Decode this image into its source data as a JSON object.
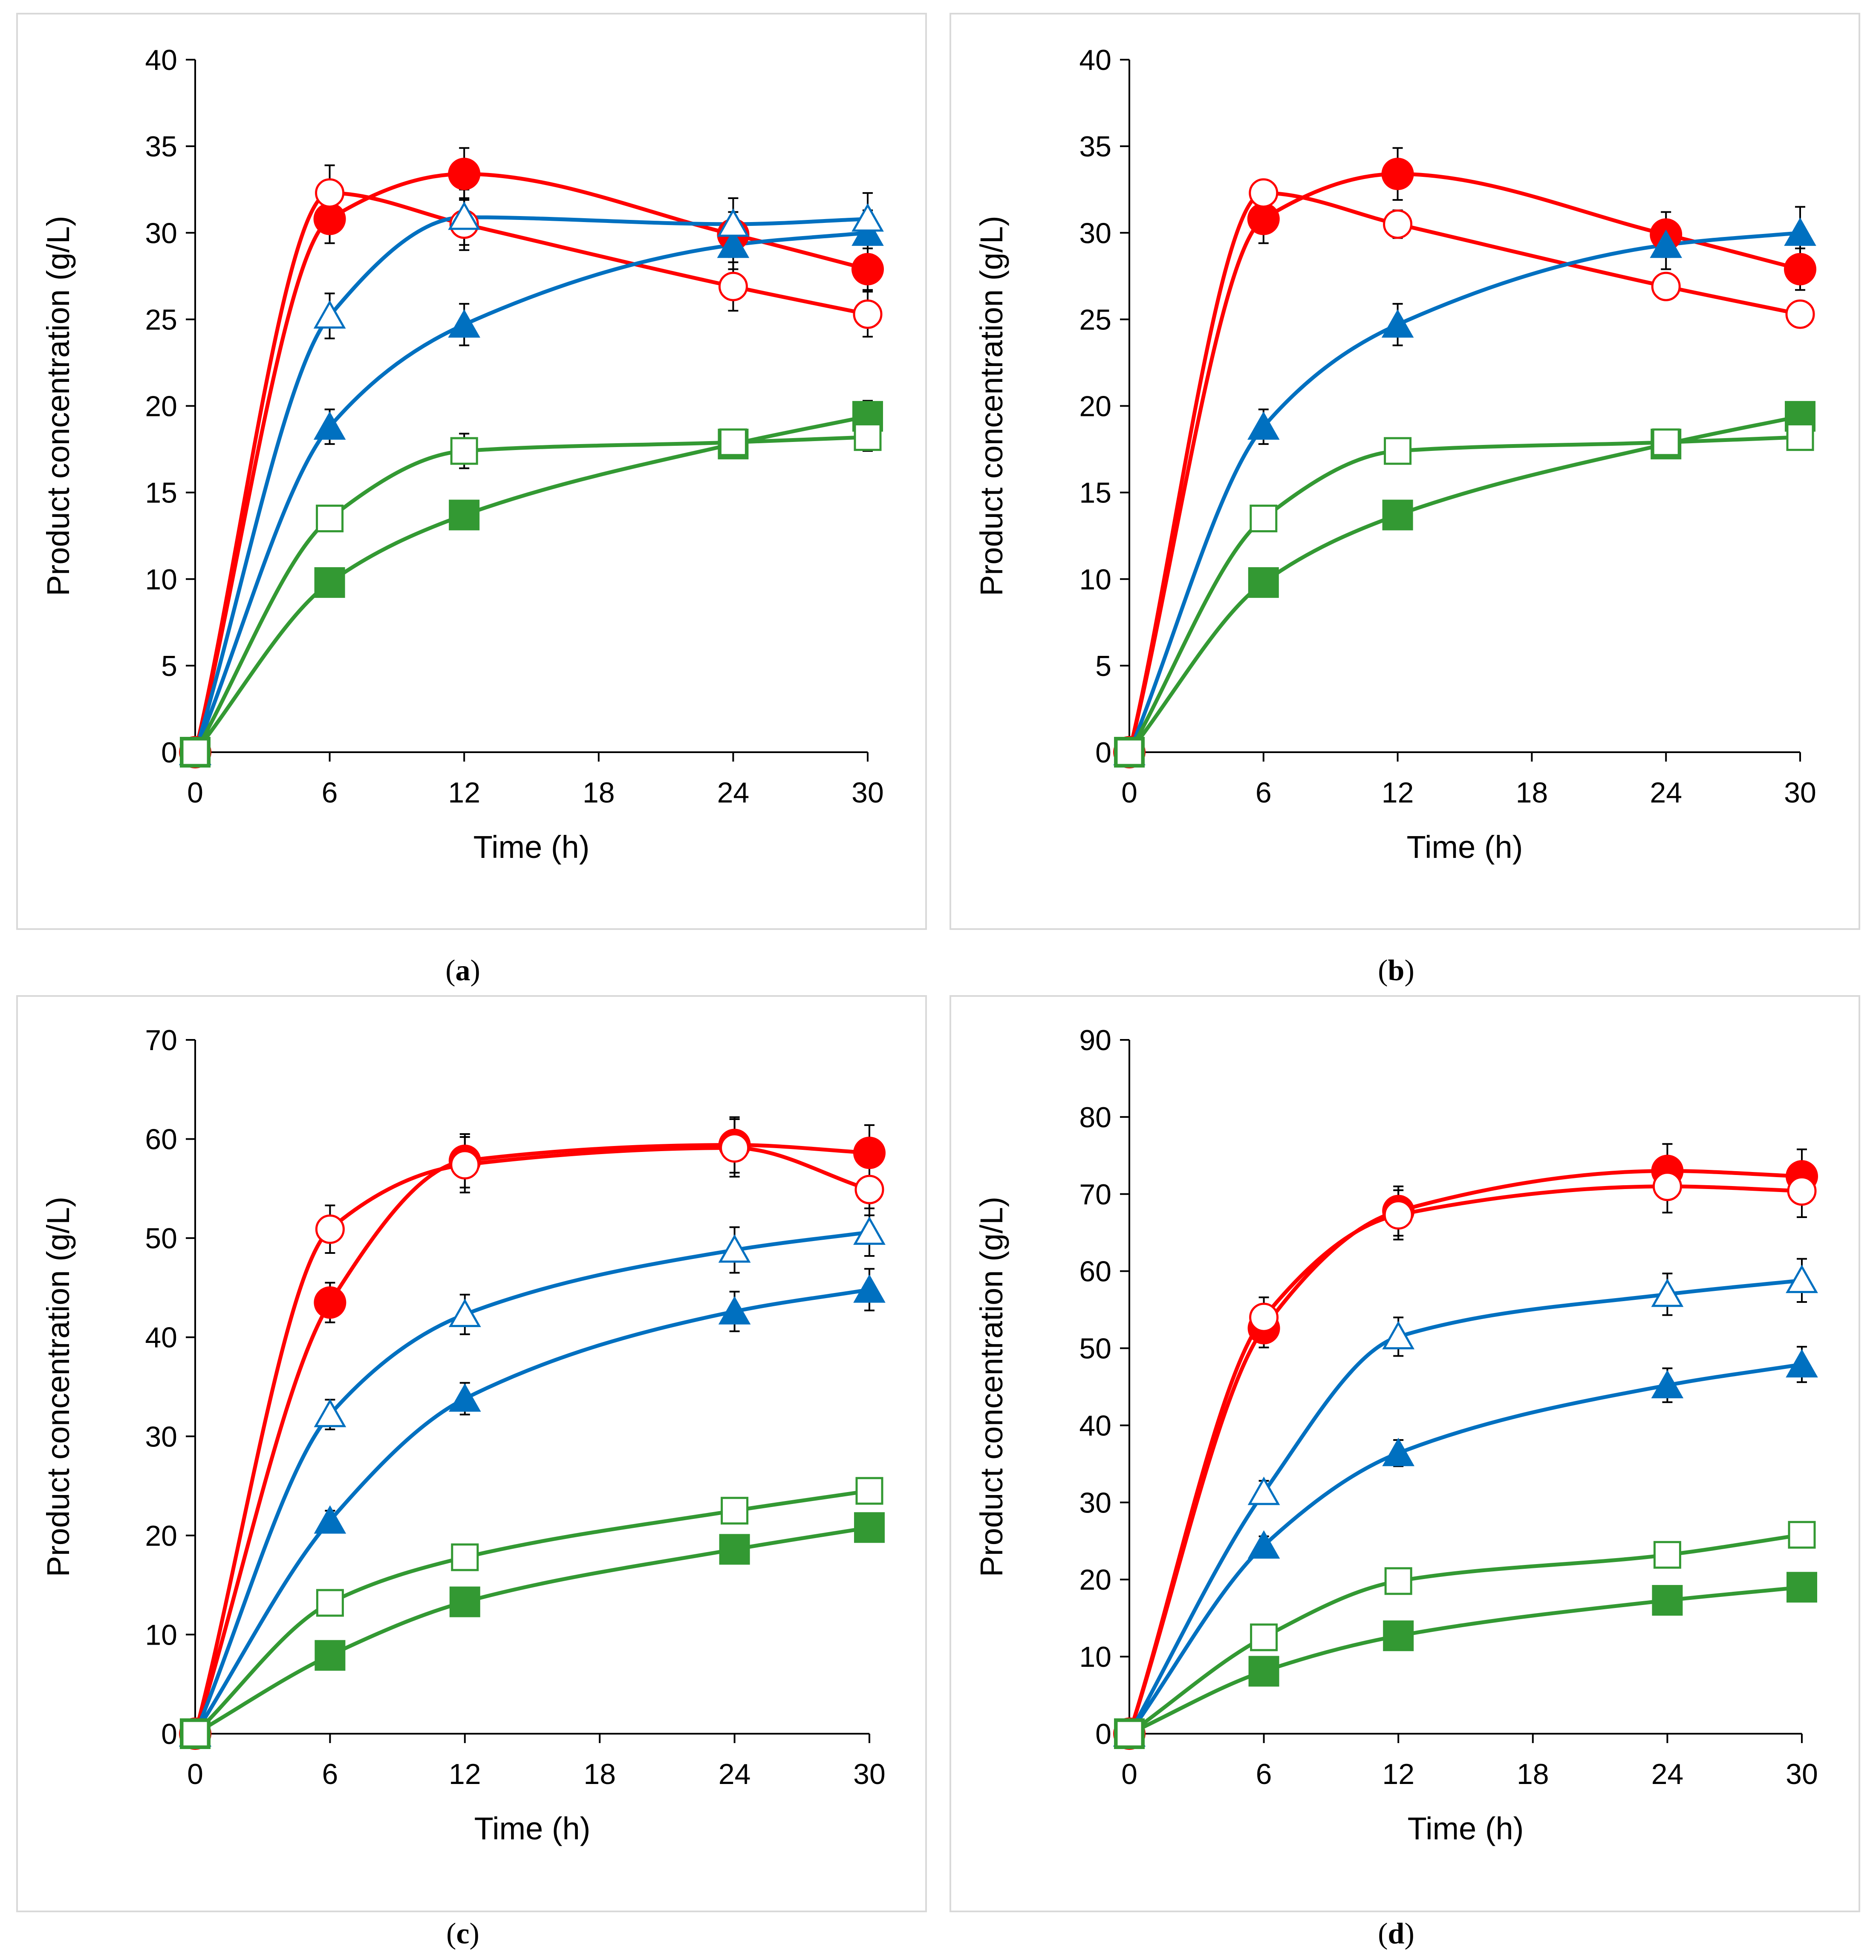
{
  "figure": {
    "colors": {
      "red": "#ff0000",
      "blue": "#0070c0",
      "green": "#339933",
      "frame": "#d9d9d9"
    },
    "marker_legend": {
      "filled-circle": "red filled circles",
      "open-circle": "red open circles",
      "filled-triangle": "blue filled triangles",
      "open-triangle": "blue open triangles",
      "filled-square": "green filled squares",
      "open-square": "green open squares"
    }
  },
  "chart_data": [
    {
      "type": "line",
      "panel_label": "a",
      "caption_open": "(",
      "caption_close": ")",
      "xlabel": "Time (h)",
      "ylabel": "Product concentration (g/L)",
      "x_ticks": [
        0,
        6,
        12,
        18,
        24,
        30
      ],
      "y_ticks": [
        0,
        5,
        10,
        15,
        20,
        25,
        30,
        35,
        40
      ],
      "ylim": [
        0,
        40
      ],
      "x": [
        0,
        6,
        12,
        24,
        30
      ],
      "series": [
        {
          "name": "red-filled",
          "color": "#ff0000",
          "marker": "circle",
          "filled": true,
          "values": [
            0,
            30.8,
            33.4,
            29.9,
            27.9
          ],
          "errors": [
            0,
            1.4,
            1.5,
            1.3,
            1.2
          ]
        },
        {
          "name": "red-open",
          "color": "#ff0000",
          "marker": "circle",
          "filled": false,
          "values": [
            0,
            32.3,
            30.5,
            26.9,
            25.3
          ],
          "errors": [
            0,
            1.6,
            1.5,
            1.4,
            1.3
          ]
        },
        {
          "name": "blue-filled",
          "color": "#0070c0",
          "marker": "triangle",
          "filled": true,
          "values": [
            0,
            18.8,
            24.7,
            29.3,
            30.0
          ],
          "errors": [
            0,
            1.0,
            1.2,
            1.4,
            1.3
          ]
        },
        {
          "name": "blue-open",
          "color": "#0070c0",
          "marker": "triangle",
          "filled": false,
          "values": [
            0,
            25.2,
            30.9,
            30.5,
            30.8
          ],
          "errors": [
            0,
            1.3,
            1.6,
            1.5,
            1.5
          ]
        },
        {
          "name": "green-filled",
          "color": "#339933",
          "marker": "square",
          "filled": true,
          "values": [
            0,
            9.8,
            13.7,
            17.8,
            19.4
          ],
          "errors": [
            0,
            0.5,
            0.6,
            0.8,
            0.9
          ]
        },
        {
          "name": "green-open",
          "color": "#339933",
          "marker": "square",
          "filled": false,
          "values": [
            0,
            13.5,
            17.4,
            17.9,
            18.2
          ],
          "errors": [
            0,
            0.7,
            1.0,
            0.7,
            0.8
          ]
        }
      ]
    },
    {
      "type": "line",
      "panel_label": "b",
      "caption_open": "(",
      "caption_close": ")",
      "xlabel": "Time (h)",
      "ylabel": "Product concentration (g/L)",
      "x_ticks": [
        0,
        6,
        12,
        18,
        24,
        30
      ],
      "y_ticks": [
        0,
        5,
        10,
        15,
        20,
        25,
        30,
        35,
        40
      ],
      "ylim": [
        0,
        40
      ],
      "x": [
        0,
        6,
        12,
        24,
        30
      ],
      "series": [
        {
          "name": "red-filled",
          "color": "#ff0000",
          "marker": "circle",
          "filled": true,
          "values": [
            0,
            30.8,
            33.4,
            29.9,
            27.9
          ],
          "errors": [
            0,
            1.4,
            1.5,
            1.3,
            1.2
          ]
        },
        {
          "name": "red-open",
          "color": "#ff0000",
          "marker": "circle",
          "filled": false,
          "values": [
            0,
            32.3,
            30.5,
            26.9,
            25.3
          ],
          "errors": [
            0,
            0.7,
            0.8,
            0.6,
            0.6
          ]
        },
        {
          "name": "blue-filled",
          "color": "#0070c0",
          "marker": "triangle",
          "filled": true,
          "values": [
            0,
            18.8,
            24.7,
            29.3,
            30.0
          ],
          "errors": [
            0,
            1.0,
            1.2,
            1.4,
            1.5
          ]
        },
        {
          "name": "green-filled",
          "color": "#339933",
          "marker": "square",
          "filled": true,
          "values": [
            0,
            9.8,
            13.7,
            17.8,
            19.4
          ],
          "errors": [
            0,
            0.5,
            0.6,
            0.5,
            0.7
          ]
        },
        {
          "name": "green-open",
          "color": "#339933",
          "marker": "square",
          "filled": false,
          "values": [
            0,
            13.5,
            17.4,
            17.9,
            18.2
          ],
          "errors": [
            0,
            0.6,
            0.5,
            0.6,
            0.7
          ]
        }
      ]
    },
    {
      "type": "line",
      "panel_label": "c",
      "caption_open": "(",
      "caption_close": ")",
      "xlabel": "Time (h)",
      "ylabel": "Product concentration (g/L)",
      "x_ticks": [
        0,
        6,
        12,
        18,
        24,
        30
      ],
      "y_ticks": [
        0,
        10,
        20,
        30,
        40,
        50,
        60,
        70
      ],
      "ylim": [
        0,
        70
      ],
      "x": [
        0,
        6,
        12,
        24,
        30
      ],
      "series": [
        {
          "name": "red-filled",
          "color": "#ff0000",
          "marker": "circle",
          "filled": true,
          "values": [
            0,
            43.5,
            57.8,
            59.4,
            58.6
          ],
          "errors": [
            0,
            2.0,
            2.7,
            2.8,
            2.8
          ]
        },
        {
          "name": "red-open",
          "color": "#ff0000",
          "marker": "circle",
          "filled": false,
          "values": [
            0,
            50.9,
            57.4,
            59.1,
            54.9
          ],
          "errors": [
            0,
            2.4,
            2.8,
            2.9,
            2.6
          ]
        },
        {
          "name": "blue-filled",
          "color": "#0070c0",
          "marker": "triangle",
          "filled": true,
          "values": [
            0,
            21.5,
            33.8,
            42.6,
            44.8
          ],
          "errors": [
            0,
            1.0,
            1.6,
            2.0,
            2.1
          ]
        },
        {
          "name": "blue-open",
          "color": "#0070c0",
          "marker": "triangle",
          "filled": false,
          "values": [
            0,
            32.2,
            42.3,
            48.8,
            50.6
          ],
          "errors": [
            0,
            1.5,
            2.0,
            2.3,
            2.4
          ]
        },
        {
          "name": "green-filled",
          "color": "#339933",
          "marker": "square",
          "filled": true,
          "values": [
            0,
            7.9,
            13.3,
            18.6,
            20.8
          ],
          "errors": [
            0,
            0.4,
            0.7,
            0.9,
            1.0
          ]
        },
        {
          "name": "green-open",
          "color": "#339933",
          "marker": "square",
          "filled": false,
          "values": [
            0,
            13.2,
            17.8,
            22.5,
            24.5
          ],
          "errors": [
            0,
            0.7,
            1.0,
            1.2,
            1.2
          ]
        }
      ]
    },
    {
      "type": "line",
      "panel_label": "d",
      "caption_open": "(",
      "caption_close": ")",
      "xlabel": "Time (h)",
      "ylabel": "Product concentration (g/L)",
      "x_ticks": [
        0,
        6,
        12,
        18,
        24,
        30
      ],
      "y_ticks": [
        0,
        10,
        20,
        30,
        40,
        50,
        60,
        70,
        80,
        90
      ],
      "ylim": [
        0,
        90
      ],
      "x": [
        0,
        6,
        12,
        24,
        30
      ],
      "series": [
        {
          "name": "red-filled",
          "color": "#ff0000",
          "marker": "circle",
          "filled": true,
          "values": [
            0,
            52.6,
            67.8,
            73.0,
            72.3
          ],
          "errors": [
            0,
            2.5,
            3.2,
            3.5,
            3.5
          ]
        },
        {
          "name": "red-open",
          "color": "#ff0000",
          "marker": "circle",
          "filled": false,
          "values": [
            0,
            54.0,
            67.3,
            71.0,
            70.4
          ],
          "errors": [
            0,
            2.6,
            3.2,
            3.4,
            3.4
          ]
        },
        {
          "name": "blue-filled",
          "color": "#0070c0",
          "marker": "triangle",
          "filled": true,
          "values": [
            0,
            24.4,
            36.4,
            45.2,
            47.9
          ],
          "errors": [
            0,
            1.2,
            1.7,
            2.2,
            2.3
          ]
        },
        {
          "name": "blue-open",
          "color": "#0070c0",
          "marker": "triangle",
          "filled": false,
          "values": [
            0,
            31.3,
            51.5,
            57.0,
            58.8
          ],
          "errors": [
            0,
            1.5,
            2.5,
            2.7,
            2.8
          ]
        },
        {
          "name": "green-filled",
          "color": "#339933",
          "marker": "square",
          "filled": true,
          "values": [
            0,
            8.1,
            12.7,
            17.3,
            19.0
          ],
          "errors": [
            0,
            0.4,
            0.6,
            0.8,
            0.9
          ]
        },
        {
          "name": "green-open",
          "color": "#339933",
          "marker": "square",
          "filled": false,
          "values": [
            0,
            12.5,
            19.8,
            23.2,
            25.8
          ],
          "errors": [
            0,
            0.6,
            1.0,
            1.2,
            1.3
          ]
        }
      ]
    }
  ]
}
